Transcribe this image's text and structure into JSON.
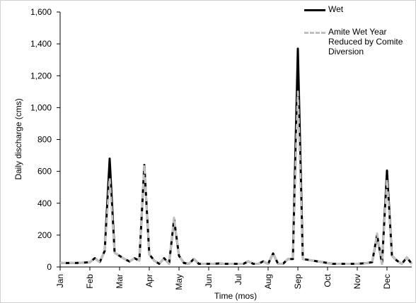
{
  "chart_data": {
    "type": "line",
    "y_label": "Daily discharge (cms)",
    "x_label": "Time (mos)",
    "categories": [
      "Jan",
      null,
      null,
      null,
      null,
      null,
      "Feb",
      null,
      null,
      null,
      null,
      null,
      "Mar",
      null,
      null,
      null,
      null,
      null,
      "Apr",
      null,
      null,
      null,
      null,
      null,
      "May",
      null,
      null,
      null,
      null,
      null,
      "Jun",
      null,
      null,
      null,
      null,
      null,
      "Jul",
      null,
      null,
      null,
      null,
      null,
      "Aug",
      null,
      null,
      null,
      null,
      null,
      "Sep",
      null,
      null,
      null,
      null,
      null,
      "Oct",
      null,
      null,
      null,
      null,
      null,
      "Nov",
      null,
      null,
      null,
      null,
      null,
      "Dec",
      null,
      null,
      null,
      null,
      null
    ],
    "series": [
      {
        "name": "Wet",
        "color": "#000000",
        "dashed": false,
        "values": [
          25,
          25,
          25,
          25,
          26,
          28,
          30,
          55,
          30,
          100,
          680,
          90,
          70,
          50,
          35,
          55,
          40,
          640,
          80,
          40,
          20,
          55,
          20,
          300,
          70,
          25,
          20,
          50,
          20,
          20,
          20,
          20,
          22,
          20,
          20,
          20,
          20,
          20,
          35,
          20,
          20,
          35,
          20,
          85,
          20,
          20,
          50,
          50,
          1370,
          50,
          45,
          40,
          35,
          30,
          25,
          20,
          20,
          20,
          20,
          20,
          20,
          22,
          25,
          30,
          200,
          20,
          605,
          70,
          40,
          20,
          60,
          20
        ]
      },
      {
        "name": "Amite Wet Year Reduced by Comite Diversion",
        "color": "#c0c0c0",
        "dashed": true,
        "values": [
          25,
          25,
          25,
          25,
          26,
          28,
          30,
          55,
          30,
          100,
          560,
          90,
          70,
          50,
          35,
          55,
          40,
          640,
          80,
          40,
          20,
          55,
          20,
          310,
          70,
          25,
          20,
          50,
          20,
          20,
          20,
          20,
          22,
          20,
          20,
          20,
          20,
          20,
          35,
          20,
          20,
          35,
          20,
          85,
          20,
          20,
          50,
          50,
          1100,
          50,
          45,
          40,
          35,
          30,
          25,
          20,
          20,
          20,
          20,
          20,
          20,
          22,
          25,
          30,
          210,
          20,
          550,
          70,
          40,
          20,
          60,
          20
        ]
      }
    ],
    "ylim": [
      0,
      1600
    ],
    "yticks": [
      0,
      200,
      400,
      600,
      800,
      {
        "value": 1000,
        "label": "1,000"
      },
      {
        "value": 1200,
        "label": "1,200"
      },
      {
        "value": 1400,
        "label": "1,400"
      },
      {
        "value": 1600,
        "label": "1,600"
      }
    ],
    "grid": false,
    "legend": "upper-right"
  }
}
